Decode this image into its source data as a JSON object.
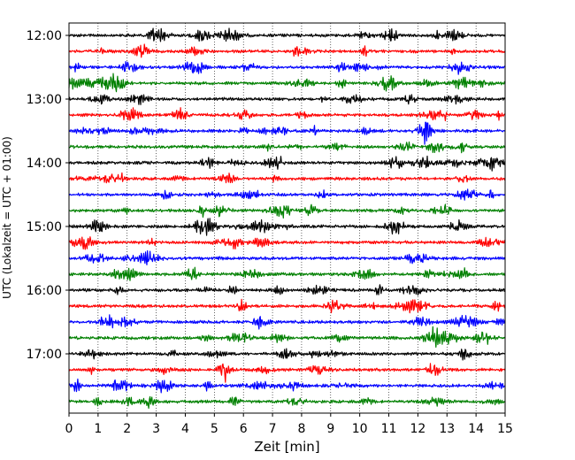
{
  "chart_data": {
    "type": "line",
    "title": "",
    "xlabel": "Zeit  [min]",
    "ylabel": "UTC (Lokalzeit = UTC + 01:00)",
    "x_range": [
      0,
      15
    ],
    "x_ticks": [
      0,
      1,
      2,
      3,
      4,
      5,
      6,
      7,
      8,
      9,
      10,
      11,
      12,
      13,
      14,
      15
    ],
    "x_tick_labels": [
      "0",
      "1",
      "2",
      "3",
      "4",
      "5",
      "6",
      "7",
      "8",
      "9",
      "10",
      "11",
      "12",
      "13",
      "14",
      "15"
    ],
    "y_tick_labels": [
      "12:00",
      "13:00",
      "14:00",
      "15:00",
      "16:00",
      "17:00"
    ],
    "grid": "vertical dotted at each minute",
    "trace_interval_min": 15,
    "trace_start_times": [
      "12:00",
      "12:15",
      "12:30",
      "12:45",
      "13:00",
      "13:15",
      "13:30",
      "13:45",
      "14:00",
      "14:15",
      "14:30",
      "14:45",
      "15:00",
      "15:15",
      "15:30",
      "15:45",
      "16:00",
      "16:15",
      "16:30",
      "16:45",
      "17:00",
      "17:15",
      "17:30",
      "17:45"
    ],
    "trace_colors": [
      "#000000",
      "#ff0000",
      "#0000ff",
      "#008000"
    ]
  }
}
